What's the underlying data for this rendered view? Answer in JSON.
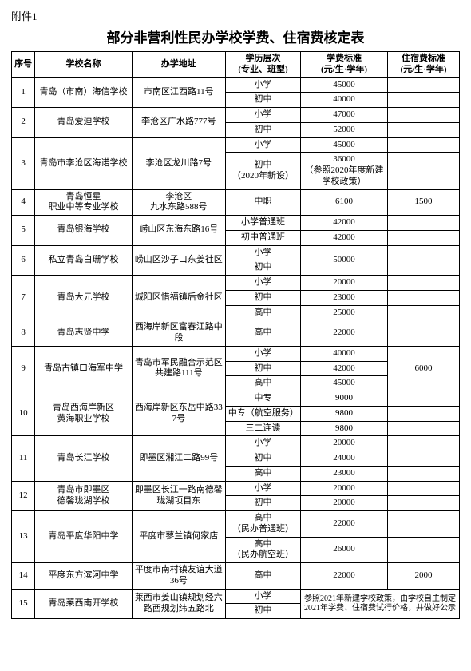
{
  "attachment_label": "附件1",
  "title": "部分非营利性民办学校学费、住宿费核定表",
  "headers": {
    "idx": "序号",
    "name": "学校名称",
    "addr": "办学地址",
    "level": "学历层次\n(专业、班型)",
    "fee": "学费标准\n(元/生·学年)",
    "room": "住宿费标准\n(元/生·学年)"
  },
  "rows": [
    {
      "idx": "1",
      "name": "青岛（市南）海信学校",
      "addr": "市南区江西路11号",
      "levels": [
        {
          "level": "小学",
          "fee": "45000",
          "room": ""
        },
        {
          "level": "初中",
          "fee": "40000",
          "room": ""
        }
      ]
    },
    {
      "idx": "2",
      "name": "青岛爱迪学校",
      "addr": "李沧区广水路777号",
      "levels": [
        {
          "level": "小学",
          "fee": "47000",
          "room": ""
        },
        {
          "level": "初中",
          "fee": "52000",
          "room": ""
        }
      ]
    },
    {
      "idx": "3",
      "name": "青岛市李沧区海诺学校",
      "addr": "李沧区龙川路7号",
      "levels": [
        {
          "level": "小学",
          "fee": "45000",
          "room": ""
        },
        {
          "level": "初中\n（2020年新设）",
          "fee": "36000\n（参照2020年度新建学校政策）",
          "room": ""
        }
      ]
    },
    {
      "idx": "4",
      "name": "青岛恒星\n职业中等专业学校",
      "addr": "李沧区\n九水东路588号",
      "levels": [
        {
          "level": "中职",
          "fee": "6100",
          "room": "1500"
        }
      ]
    },
    {
      "idx": "5",
      "name": "青岛银海学校",
      "addr": "崂山区东海东路16号",
      "levels": [
        {
          "level": "小学普通班",
          "fee": "42000",
          "room": ""
        },
        {
          "level": "初中普通班",
          "fee": "42000",
          "room": ""
        }
      ]
    },
    {
      "idx": "6",
      "name": "私立青岛白珊学校",
      "addr": "崂山区沙子口东姜社区",
      "levels": [
        {
          "level": "小学",
          "fee": "",
          "room": "",
          "feeSpan": 2,
          "feeVal": "50000"
        },
        {
          "level": "初中",
          "fee": "",
          "room": ""
        }
      ]
    },
    {
      "idx": "7",
      "name": "青岛大元学校",
      "addr": "城阳区惜福镇后金社区",
      "levels": [
        {
          "level": "小学",
          "fee": "20000",
          "room": ""
        },
        {
          "level": "初中",
          "fee": "23000",
          "room": ""
        },
        {
          "level": "高中",
          "fee": "25000",
          "room": ""
        }
      ]
    },
    {
      "idx": "8",
      "name": "青岛志贤中学",
      "addr": "西海岸新区富春江路中段",
      "levels": [
        {
          "level": "高中",
          "fee": "22000",
          "room": ""
        }
      ]
    },
    {
      "idx": "9",
      "name": "青岛古镇口海军中学",
      "addr": "青岛市军民融合示范区共建路111号",
      "levels": [
        {
          "level": "小学",
          "fee": "40000",
          "room": "",
          "roomSpan": 3,
          "roomVal": "6000"
        },
        {
          "level": "初中",
          "fee": "42000",
          "room": ""
        },
        {
          "level": "高中",
          "fee": "45000",
          "room": ""
        }
      ]
    },
    {
      "idx": "10",
      "name": "青岛西海岸新区\n黄海职业学校",
      "addr": "西海岸新区东岳中路337号",
      "levels": [
        {
          "level": "中专",
          "fee": "9000",
          "room": ""
        },
        {
          "level": "中专（航空服务）",
          "fee": "9800",
          "room": ""
        },
        {
          "level": "三二连读",
          "fee": "9800",
          "room": ""
        }
      ]
    },
    {
      "idx": "11",
      "name": "青岛长江学校",
      "addr": "即墨区湘江二路99号",
      "levels": [
        {
          "level": "小学",
          "fee": "20000",
          "room": ""
        },
        {
          "level": "初中",
          "fee": "24000",
          "room": ""
        },
        {
          "level": "高中",
          "fee": "23000",
          "room": ""
        }
      ]
    },
    {
      "idx": "12",
      "name": "青岛市即墨区\n德馨珑湖学校",
      "addr": "即墨区长江一路南德馨珑湖项目东",
      "levels": [
        {
          "level": "小学",
          "fee": "20000",
          "room": ""
        },
        {
          "level": "初中",
          "fee": "20000",
          "room": ""
        }
      ]
    },
    {
      "idx": "13",
      "name": "青岛平度华阳中学",
      "addr": "平度市蓼兰镇何家店",
      "levels": [
        {
          "level": "高中\n（民办普通班）",
          "fee": "22000",
          "room": ""
        },
        {
          "level": "高中\n（民办航空班）",
          "fee": "26000",
          "room": ""
        }
      ]
    },
    {
      "idx": "14",
      "name": "平度东方滨河中学",
      "addr": "平度市南村镇友谊大道36号",
      "levels": [
        {
          "level": "高中",
          "fee": "22000",
          "room": "2000"
        }
      ]
    },
    {
      "idx": "15",
      "name": "青岛莱西南开学校",
      "addr": "莱西市姜山镇规划经六路西规划纬五路北",
      "levels": [
        {
          "level": "小学",
          "fee": "",
          "room": "",
          "feeSpan": 2,
          "feeColspan": 2,
          "feeVal": "参照2021年新建学校政策，由学校自主制定2021年学费、住宿费试行价格，并做好公示"
        },
        {
          "level": "初中",
          "fee": "",
          "room": ""
        }
      ]
    }
  ]
}
